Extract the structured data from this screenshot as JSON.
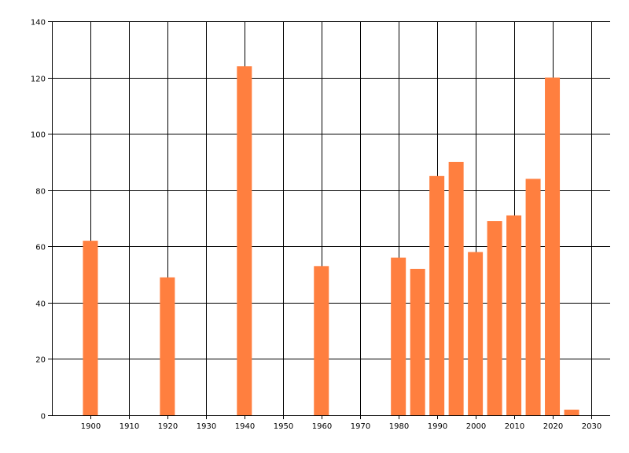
{
  "chart_data": {
    "type": "bar",
    "title": "",
    "xlabel": "",
    "ylabel": "",
    "x": [
      1900,
      1920,
      1940,
      1960,
      1980,
      1985,
      1990,
      1995,
      2000,
      2005,
      2010,
      2015,
      2020,
      2025
    ],
    "values": [
      62,
      49,
      124,
      53,
      56,
      52,
      85,
      90,
      58,
      69,
      71,
      84,
      120,
      2
    ],
    "xlim": [
      1890,
      2035
    ],
    "ylim": [
      0,
      140
    ],
    "x_ticks": [
      1900,
      1910,
      1920,
      1930,
      1940,
      1950,
      1960,
      1970,
      1980,
      1990,
      2000,
      2010,
      2020,
      2030
    ],
    "y_ticks": [
      0,
      20,
      40,
      60,
      80,
      100,
      120,
      140
    ],
    "bar_color": "#FF7F3F",
    "grid": true,
    "legend": "none"
  }
}
